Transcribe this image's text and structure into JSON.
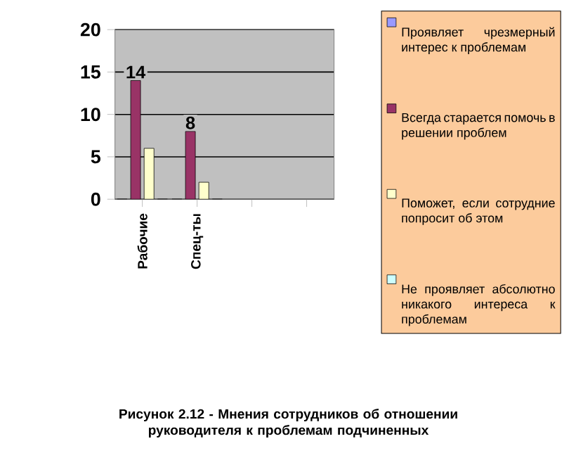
{
  "chart_data": {
    "type": "bar",
    "title": "Рисунок 2.12 - Мнения сотрудников об отношении руководителя к проблемам подчиненных",
    "categories": [
      "Рабочие",
      "Спец-ты",
      null,
      null
    ],
    "series": [
      {
        "name": "Проявляет чрезмерный интерес к проблемам",
        "color": "#9999ff",
        "values": [
          0,
          0,
          null,
          null
        ]
      },
      {
        "name": "Всегда старается помочь в решении проблем",
        "color": "#993366",
        "values": [
          14,
          8,
          null,
          null
        ],
        "value_labels": [
          "14",
          "8",
          null,
          null
        ]
      },
      {
        "name": "Поможет, если сотрудние попросит об этом",
        "color": "#ffffcc",
        "values": [
          6,
          2,
          null,
          null
        ]
      },
      {
        "name": "Не проявляет абсолютно никакого интереса к проблемам",
        "color": "#ccffff",
        "values": [
          0,
          0,
          null,
          null
        ]
      }
    ],
    "ylim": [
      0,
      20
    ],
    "yticks": [
      0,
      5,
      10,
      15,
      20
    ],
    "grid": "y",
    "legend": "right"
  }
}
